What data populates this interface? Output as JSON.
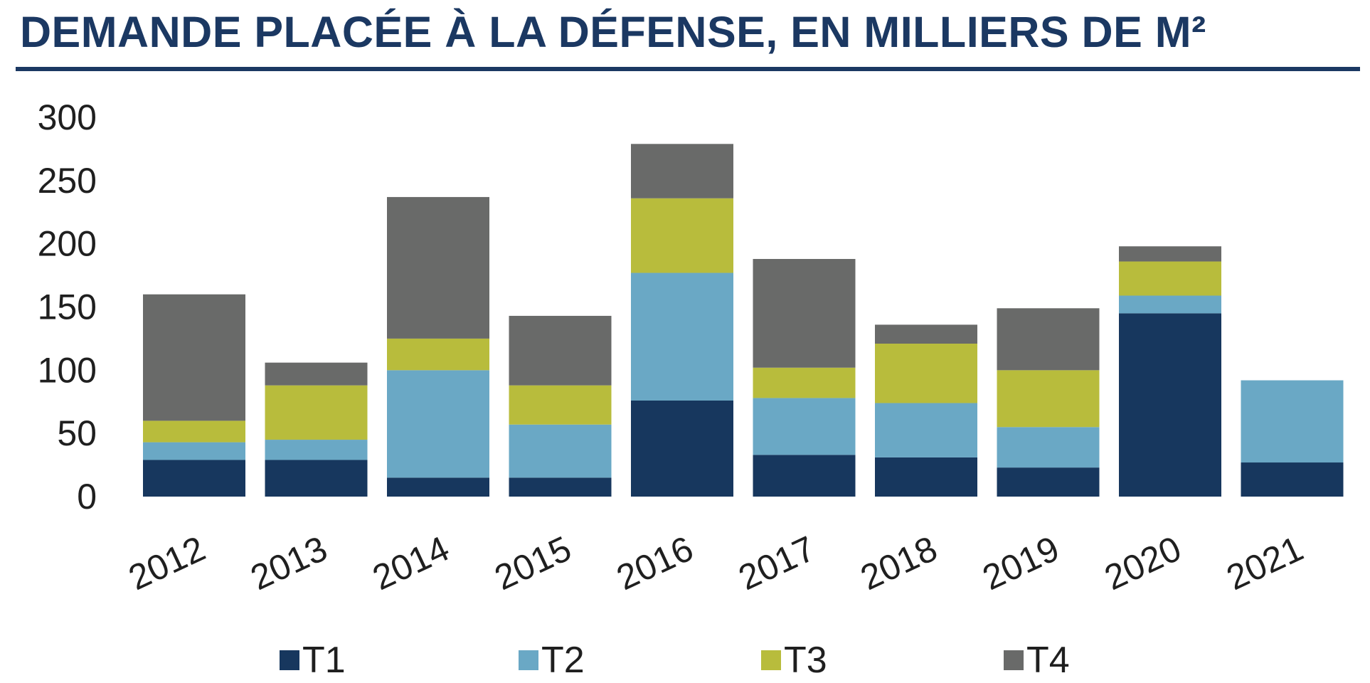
{
  "chart_data": {
    "type": "bar",
    "stacked": true,
    "title": "DEMANDE PLACÉE À LA DÉFENSE, EN MILLIERS DE M²",
    "categories": [
      "2012",
      "2013",
      "2014",
      "2015",
      "2016",
      "2017",
      "2018",
      "2019",
      "2020",
      "2021"
    ],
    "series": [
      {
        "name": "T1",
        "color": "#17375e",
        "values": [
          29,
          29,
          15,
          15,
          76,
          33,
          31,
          23,
          145,
          27
        ]
      },
      {
        "name": "T2",
        "color": "#6aa8c5",
        "values": [
          14,
          16,
          85,
          42,
          101,
          45,
          43,
          32,
          14,
          65
        ]
      },
      {
        "name": "T3",
        "color": "#b8bc3c",
        "values": [
          17,
          43,
          25,
          31,
          59,
          24,
          47,
          45,
          27,
          0
        ]
      },
      {
        "name": "T4",
        "color": "#696a69",
        "values": [
          100,
          18,
          112,
          55,
          43,
          86,
          15,
          49,
          12,
          0
        ]
      }
    ],
    "yticks": [
      0,
      50,
      100,
      150,
      200,
      250,
      300
    ],
    "ylim": [
      0,
      300
    ],
    "grid": false,
    "legend_position": "bottom"
  }
}
